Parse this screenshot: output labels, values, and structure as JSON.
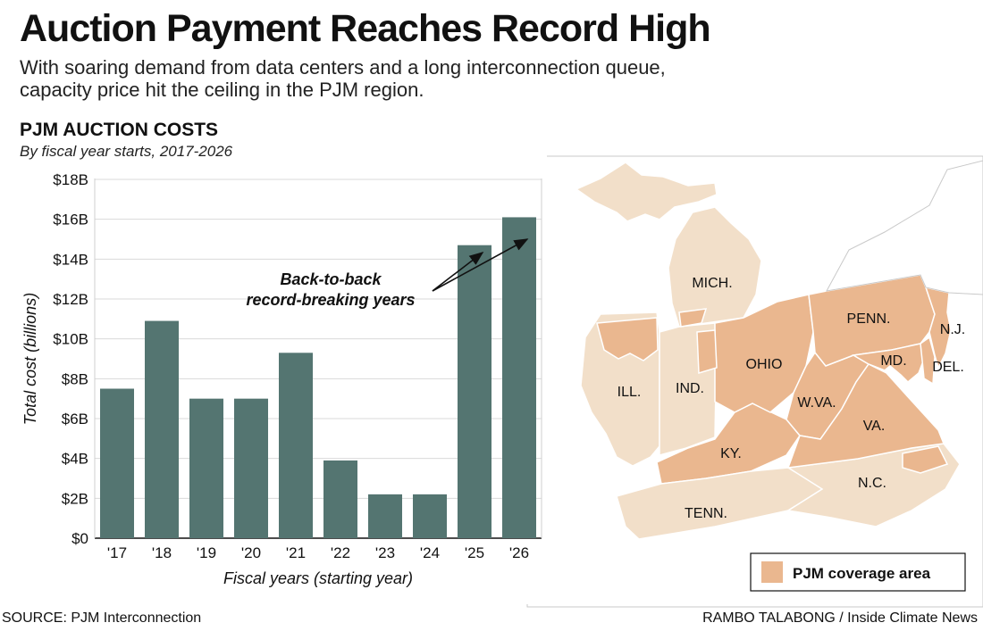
{
  "header": {
    "title": "Auction Payment Reaches Record High",
    "subtitle": "With soaring demand from data centers and a long interconnection queue, capacity price hit the ceiling in the PJM region."
  },
  "colors": {
    "bar": "#547571",
    "pjm_area": "#eab78f",
    "land": "#f2dfc9",
    "outside": "#ffffff",
    "water": "#ffffff",
    "border": "#ffffff",
    "grid": "#d9d9d9"
  },
  "map": {
    "legend_label": "PJM coverage area",
    "states": [
      {
        "id": "mich",
        "label": "MICH."
      },
      {
        "id": "ill",
        "label": "ILL."
      },
      {
        "id": "ind",
        "label": "IND."
      },
      {
        "id": "ohio",
        "label": "OHIO"
      },
      {
        "id": "penn",
        "label": "PENN."
      },
      {
        "id": "nj",
        "label": "N.J."
      },
      {
        "id": "md",
        "label": "MD."
      },
      {
        "id": "del",
        "label": "DEL."
      },
      {
        "id": "wva",
        "label": "W.VA."
      },
      {
        "id": "va",
        "label": "VA."
      },
      {
        "id": "ky",
        "label": "KY."
      },
      {
        "id": "nc",
        "label": "N.C."
      },
      {
        "id": "tenn",
        "label": "TENN."
      }
    ]
  },
  "chart_data": {
    "type": "bar",
    "title": "PJM AUCTION COSTS",
    "subtitle": "By fiscal year starts, 2017-2026",
    "xlabel": "Fiscal years (starting year)",
    "ylabel": "Total cost (billions)",
    "categories": [
      "'17",
      "'18",
      "'19",
      "'20",
      "'21",
      "'22",
      "'23",
      "'24",
      "'25",
      "'26"
    ],
    "values": [
      7.5,
      10.9,
      7.0,
      7.0,
      9.3,
      3.9,
      2.2,
      2.2,
      14.7,
      16.1
    ],
    "ylim": [
      0,
      18
    ],
    "yticks": [
      0,
      2,
      4,
      6,
      8,
      10,
      12,
      14,
      16,
      18
    ],
    "ytick_labels": [
      "$0",
      "$2B",
      "$4B",
      "$6B",
      "$8B",
      "$10B",
      "$12B",
      "$14B",
      "$16B",
      "$18B"
    ],
    "grid": true,
    "annotation": {
      "lines": [
        "Back-to-back",
        "record-breaking years"
      ],
      "targets": [
        "'25",
        "'26"
      ]
    }
  },
  "footer": {
    "source": "SOURCE: PJM Interconnection",
    "credit": "RAMBO TALABONG / Inside Climate News"
  }
}
